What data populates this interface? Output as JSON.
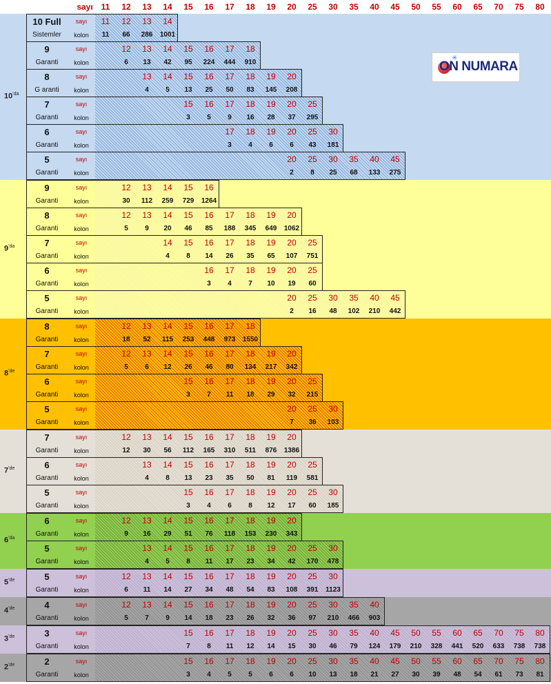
{
  "header": {
    "label": "sayı",
    "columns": [
      "11",
      "12",
      "13",
      "14",
      "15",
      "16",
      "17",
      "18",
      "19",
      "20",
      "25",
      "30",
      "35",
      "40",
      "45",
      "50",
      "55",
      "60",
      "65",
      "70",
      "75",
      "80"
    ]
  },
  "logo": {
    "text": "ON NUMARA"
  },
  "colors": {
    "band_10": "#c5d9f1",
    "band_9": "#ffff99",
    "band_8": "#ffc000",
    "band_7": "#e4e0d8",
    "band_6": "#92d050",
    "band_5": "#ccc0da",
    "band_4": "#a6a6a6",
    "band_3": "#ccc0da",
    "band_2": "#a6a6a6"
  },
  "bands": [
    {
      "label": "10",
      "suffix": "'da",
      "color": "#c5d9f1",
      "hatch": "#7fa6d6",
      "blocks": [
        {
          "title": "10 Full",
          "subtitle": "Sistemler",
          "row1_label": "sayı",
          "row2_label": "kolon",
          "numbers": [
            "11",
            "12",
            "13",
            "14"
          ],
          "kolon": [
            "11",
            "66",
            "286",
            "1001"
          ]
        },
        {
          "title": "9",
          "subtitle": "Garanti",
          "row1_label": "sayı",
          "row2_label": "kolon",
          "numbers": [
            "12",
            "13",
            "14",
            "15",
            "16",
            "17",
            "18"
          ],
          "kolon": [
            "6",
            "13",
            "42",
            "95",
            "224",
            "444",
            "910"
          ]
        },
        {
          "title": "8",
          "subtitle": "G aranti",
          "row1_label": "sayı",
          "row2_label": "kolon",
          "numbers": [
            "13",
            "14",
            "15",
            "16",
            "17",
            "18",
            "19",
            "20"
          ],
          "kolon": [
            "4",
            "5",
            "13",
            "25",
            "50",
            "83",
            "145",
            "208"
          ]
        },
        {
          "title": "7",
          "subtitle": "Garanti",
          "row1_label": "sayı",
          "row2_label": "kolon",
          "numbers": [
            "15",
            "16",
            "17",
            "18",
            "19",
            "20",
            "25"
          ],
          "kolon": [
            "3",
            "5",
            "9",
            "16",
            "28",
            "37",
            "295"
          ]
        },
        {
          "title": "6",
          "subtitle": "Garanti",
          "row1_label": "sayı",
          "row2_label": "kolon",
          "numbers": [
            "17",
            "18",
            "19",
            "20",
            "25",
            "30"
          ],
          "kolon": [
            "3",
            "4",
            "6",
            "6",
            "43",
            "181"
          ]
        },
        {
          "title": "5",
          "subtitle": "Garanti",
          "row1_label": "sayı",
          "row2_label": "kolon",
          "numbers": [
            "20",
            "25",
            "30",
            "35",
            "40",
            "45"
          ],
          "kolon": [
            "2",
            "8",
            "25",
            "68",
            "133",
            "275"
          ]
        }
      ]
    },
    {
      "label": "9",
      "suffix": "'da",
      "color": "#ffff99",
      "hatch": "#f4f0b0",
      "blocks": [
        {
          "title": "9",
          "subtitle": "Garanti",
          "row1_label": "sayı",
          "row2_label": "kolon",
          "numbers": [
            "12",
            "13",
            "14",
            "15",
            "16"
          ],
          "kolon": [
            "30",
            "112",
            "259",
            "729",
            "1264"
          ]
        },
        {
          "title": "8",
          "subtitle": "Garanti",
          "row1_label": "sayı",
          "row2_label": "kolon",
          "numbers": [
            "12",
            "13",
            "14",
            "15",
            "16",
            "17",
            "18",
            "19",
            "20"
          ],
          "kolon": [
            "5",
            "9",
            "20",
            "46",
            "85",
            "188",
            "345",
            "649",
            "1062"
          ]
        },
        {
          "title": "7",
          "subtitle": "Garanti",
          "row1_label": "sayı",
          "row2_label": "kolon",
          "numbers": [
            "14",
            "15",
            "16",
            "17",
            "18",
            "19",
            "20",
            "25"
          ],
          "kolon": [
            "4",
            "8",
            "14",
            "26",
            "35",
            "65",
            "107",
            "751"
          ]
        },
        {
          "title": "6",
          "subtitle": "Garanti",
          "row1_label": "sayı",
          "row2_label": "kolon",
          "numbers": [
            "16",
            "17",
            "18",
            "19",
            "20",
            "25"
          ],
          "kolon": [
            "3",
            "4",
            "7",
            "10",
            "19",
            "60"
          ]
        },
        {
          "title": "5",
          "subtitle": "Garanti",
          "row1_label": "sayı",
          "row2_label": "kolon",
          "numbers": [
            "20",
            "25",
            "30",
            "35",
            "40",
            "45"
          ],
          "kolon": [
            "2",
            "16",
            "48",
            "102",
            "210",
            "442"
          ]
        }
      ]
    },
    {
      "label": "8",
      "suffix": "'de",
      "color": "#ffc000",
      "hatch": "#e0561a",
      "blocks": [
        {
          "title": "8",
          "subtitle": "Garanti",
          "row1_label": "sayı",
          "row2_label": "kolon",
          "numbers": [
            "12",
            "13",
            "14",
            "15",
            "16",
            "17",
            "18"
          ],
          "kolon": [
            "18",
            "52",
            "115",
            "253",
            "448",
            "973",
            "1550"
          ]
        },
        {
          "title": "7",
          "subtitle": "Garanti",
          "row1_label": "sayı",
          "row2_label": "kolon",
          "numbers": [
            "12",
            "13",
            "14",
            "15",
            "16",
            "17",
            "18",
            "19",
            "20"
          ],
          "kolon": [
            "5",
            "6",
            "12",
            "26",
            "46",
            "80",
            "134",
            "217",
            "342"
          ]
        },
        {
          "title": "6",
          "subtitle": "Garanti",
          "row1_label": "sayı",
          "row2_label": "kolon",
          "numbers": [
            "15",
            "16",
            "17",
            "18",
            "19",
            "20",
            "25"
          ],
          "kolon": [
            "3",
            "7",
            "11",
            "18",
            "29",
            "32",
            "215"
          ]
        },
        {
          "title": "5",
          "subtitle": "Garanti",
          "row1_label": "sayı",
          "row2_label": "kolon",
          "numbers": [
            "20",
            "25",
            "30"
          ],
          "kolon": [
            "7",
            "36",
            "103"
          ]
        }
      ]
    },
    {
      "label": "7",
      "suffix": "'de",
      "color": "#e4e0d8",
      "hatch": "#d6ccb8",
      "blocks": [
        {
          "title": "7",
          "subtitle": "Garanti",
          "row1_label": "sayı",
          "row2_label": "kolon",
          "numbers": [
            "12",
            "13",
            "14",
            "15",
            "16",
            "17",
            "18",
            "19",
            "20"
          ],
          "kolon": [
            "12",
            "30",
            "56",
            "112",
            "165",
            "310",
            "511",
            "876",
            "1386"
          ]
        },
        {
          "title": "6",
          "subtitle": "Garanti",
          "row1_label": "sayı",
          "row2_label": "kolon",
          "numbers": [
            "13",
            "14",
            "15",
            "16",
            "17",
            "18",
            "19",
            "20",
            "25"
          ],
          "kolon": [
            "4",
            "8",
            "13",
            "23",
            "35",
            "50",
            "81",
            "119",
            "581"
          ]
        },
        {
          "title": "5",
          "subtitle": "Garanti",
          "row1_label": "sayı",
          "row2_label": "kolon",
          "numbers": [
            "15",
            "16",
            "17",
            "18",
            "19",
            "20",
            "25",
            "30"
          ],
          "kolon": [
            "3",
            "4",
            "6",
            "8",
            "12",
            "17",
            "60",
            "185"
          ]
        }
      ]
    },
    {
      "label": "6",
      "suffix": "'da",
      "color": "#92d050",
      "hatch": "#6e9a3c",
      "blocks": [
        {
          "title": "6",
          "subtitle": "Garanti",
          "row1_label": "sayı",
          "row2_label": "kolon",
          "numbers": [
            "12",
            "13",
            "14",
            "15",
            "16",
            "17",
            "18",
            "19",
            "20"
          ],
          "kolon": [
            "9",
            "16",
            "29",
            "51",
            "76",
            "118",
            "153",
            "230",
            "343"
          ]
        },
        {
          "title": "5",
          "subtitle": "Garanti",
          "row1_label": "sayı",
          "row2_label": "kolon",
          "numbers": [
            "13",
            "14",
            "15",
            "16",
            "17",
            "18",
            "19",
            "20",
            "25",
            "30"
          ],
          "kolon": [
            "4",
            "5",
            "8",
            "11",
            "17",
            "23",
            "34",
            "42",
            "170",
            "478"
          ]
        }
      ]
    },
    {
      "label": "5",
      "suffix": "'de",
      "color": "#ccc0da",
      "hatch": "#b8a9c9",
      "blocks": [
        {
          "title": "5",
          "subtitle": "Garanti",
          "row1_label": "sayı",
          "row2_label": "kolon",
          "numbers": [
            "12",
            "13",
            "14",
            "15",
            "16",
            "17",
            "18",
            "19",
            "20",
            "25",
            "30"
          ],
          "kolon": [
            "6",
            "11",
            "14",
            "27",
            "34",
            "48",
            "54",
            "83",
            "108",
            "391",
            "1123"
          ]
        }
      ]
    },
    {
      "label": "4",
      "suffix": "'de",
      "color": "#a6a6a6",
      "hatch": "#8a8a8a",
      "blocks": [
        {
          "title": "4",
          "subtitle": "Garanti",
          "row1_label": "sayı",
          "row2_label": "kolon",
          "numbers": [
            "12",
            "13",
            "14",
            "15",
            "16",
            "17",
            "18",
            "19",
            "20",
            "25",
            "30",
            "35",
            "40"
          ],
          "kolon": [
            "5",
            "7",
            "9",
            "14",
            "18",
            "23",
            "26",
            "32",
            "36",
            "97",
            "210",
            "466",
            "903"
          ]
        }
      ]
    },
    {
      "label": "3",
      "suffix": "'de",
      "color": "#ccc0da",
      "hatch": "#b8a9c9",
      "blocks": [
        {
          "title": "3",
          "subtitle": "Garanti",
          "row1_label": "sayı",
          "row2_label": "kolon",
          "numbers": [
            "15",
            "16",
            "17",
            "18",
            "19",
            "20",
            "25",
            "30",
            "35",
            "40",
            "45",
            "50",
            "55",
            "60",
            "65",
            "70",
            "75",
            "80"
          ],
          "kolon": [
            "7",
            "8",
            "11",
            "12",
            "14",
            "15",
            "30",
            "46",
            "79",
            "124",
            "179",
            "210",
            "328",
            "441",
            "520",
            "633",
            "738",
            "738"
          ]
        }
      ]
    },
    {
      "label": "2",
      "suffix": "'de",
      "color": "#a6a6a6",
      "hatch": "#8a8a8a",
      "blocks": [
        {
          "title": "2",
          "subtitle": "Garanti",
          "row1_label": "sayı",
          "row2_label": "kolon",
          "numbers": [
            "15",
            "16",
            "17",
            "18",
            "19",
            "20",
            "25",
            "30",
            "35",
            "40",
            "45",
            "50",
            "55",
            "60",
            "65",
            "70",
            "75",
            "80"
          ],
          "kolon": [
            "3",
            "4",
            "5",
            "5",
            "6",
            "6",
            "10",
            "13",
            "18",
            "21",
            "27",
            "30",
            "39",
            "48",
            "54",
            "61",
            "73",
            "81"
          ]
        }
      ]
    }
  ]
}
